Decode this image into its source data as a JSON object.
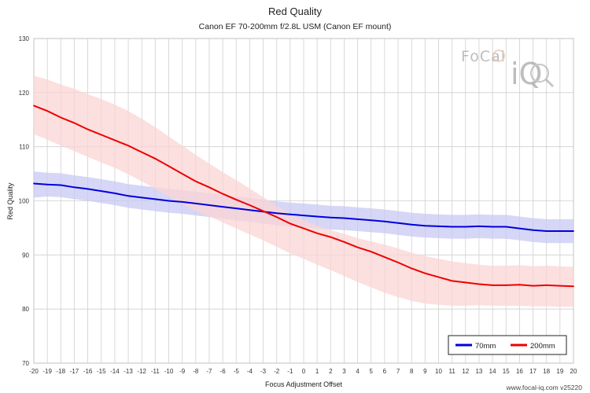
{
  "chart_data": {
    "type": "line",
    "title": "Red Quality",
    "subtitle": "Canon EF 70-200mm f/2.8L USM (Canon EF mount)",
    "xlabel": "Focus Adjustment Offset",
    "ylabel": "Red Quality",
    "xlim": [
      -20,
      20
    ],
    "ylim": [
      70,
      130
    ],
    "x_ticks": [
      -20,
      -19,
      -18,
      -17,
      -16,
      -15,
      -14,
      -13,
      -12,
      -11,
      -10,
      -9,
      -8,
      -7,
      -6,
      -5,
      -4,
      -3,
      -2,
      -1,
      0,
      1,
      2,
      3,
      4,
      5,
      6,
      7,
      8,
      9,
      10,
      11,
      12,
      13,
      14,
      15,
      16,
      17,
      18,
      19,
      20
    ],
    "y_ticks": [
      70,
      80,
      90,
      100,
      110,
      120,
      130
    ],
    "grid": true,
    "legend_position": "bottom-right",
    "x": [
      -20,
      -19,
      -18,
      -17,
      -16,
      -15,
      -14,
      -13,
      -12,
      -11,
      -10,
      -9,
      -8,
      -7,
      -6,
      -5,
      -4,
      -3,
      -2,
      -1,
      0,
      1,
      2,
      3,
      4,
      5,
      6,
      7,
      8,
      9,
      10,
      11,
      12,
      13,
      14,
      15,
      16,
      17,
      18,
      19,
      20
    ],
    "series": [
      {
        "name": "70mm",
        "color": "#0000dd",
        "band_color": "#c8c8f4",
        "values": [
          103.2,
          103.0,
          102.9,
          102.5,
          102.2,
          101.8,
          101.4,
          100.9,
          100.6,
          100.3,
          100.0,
          99.8,
          99.5,
          99.2,
          98.9,
          98.6,
          98.3,
          98.0,
          97.7,
          97.5,
          97.3,
          97.1,
          96.9,
          96.8,
          96.6,
          96.4,
          96.2,
          95.9,
          95.6,
          95.4,
          95.3,
          95.2,
          95.2,
          95.3,
          95.2,
          95.2,
          94.9,
          94.6,
          94.4,
          94.4,
          94.4
        ],
        "band_upper": [
          105.4,
          105.2,
          105.1,
          104.7,
          104.4,
          104.0,
          103.6,
          103.1,
          102.8,
          102.5,
          102.2,
          102.0,
          101.7,
          101.4,
          101.1,
          100.8,
          100.5,
          100.2,
          99.9,
          99.7,
          99.5,
          99.3,
          99.1,
          99.0,
          98.8,
          98.6,
          98.4,
          98.1,
          97.8,
          97.6,
          97.5,
          97.4,
          97.4,
          97.5,
          97.4,
          97.4,
          97.1,
          96.8,
          96.6,
          96.6,
          96.6
        ],
        "band_lower": [
          100.6,
          100.8,
          100.7,
          100.3,
          100.0,
          99.6,
          99.2,
          98.7,
          98.4,
          98.1,
          97.8,
          97.6,
          97.3,
          97.0,
          96.7,
          96.4,
          96.1,
          95.8,
          95.5,
          95.3,
          95.1,
          94.9,
          94.7,
          94.6,
          94.4,
          94.2,
          94.0,
          93.7,
          93.4,
          93.2,
          93.1,
          93.0,
          93.0,
          93.1,
          93.0,
          93.0,
          92.7,
          92.4,
          92.2,
          92.2,
          92.2
        ]
      },
      {
        "name": "200mm",
        "color": "#ee0000",
        "band_color": "#fbd4d4",
        "values": [
          117.6,
          116.6,
          115.4,
          114.4,
          113.2,
          112.2,
          111.2,
          110.2,
          109.0,
          107.8,
          106.4,
          105.0,
          103.6,
          102.5,
          101.3,
          100.2,
          99.2,
          98.1,
          97.0,
          95.8,
          94.9,
          94.0,
          93.3,
          92.4,
          91.4,
          90.6,
          89.6,
          88.6,
          87.5,
          86.6,
          85.9,
          85.2,
          84.9,
          84.6,
          84.4,
          84.4,
          84.5,
          84.3,
          84.4,
          84.3,
          84.2
        ],
        "band_upper": [
          123.1,
          122.4,
          121.5,
          120.7,
          119.7,
          118.8,
          117.8,
          116.6,
          115.2,
          113.6,
          111.9,
          110.2,
          108.5,
          106.9,
          105.3,
          103.8,
          102.3,
          100.7,
          99.1,
          97.6,
          96.5,
          95.4,
          94.6,
          93.9,
          93.1,
          92.5,
          91.9,
          91.2,
          90.4,
          89.8,
          89.3,
          88.8,
          88.5,
          88.2,
          88.0,
          88.0,
          88.1,
          87.9,
          88.0,
          87.9,
          87.8
        ],
        "band_lower": [
          112.3,
          111.3,
          110.2,
          109.2,
          108.1,
          107.1,
          106.1,
          104.9,
          103.6,
          102.2,
          100.8,
          99.4,
          98.1,
          97.1,
          96.0,
          94.9,
          93.8,
          92.7,
          91.5,
          90.3,
          89.3,
          88.2,
          87.2,
          86.1,
          85.0,
          84.0,
          83.0,
          82.2,
          81.5,
          81.0,
          80.8,
          80.6,
          80.6,
          80.7,
          80.6,
          80.6,
          80.6,
          80.5,
          80.5,
          80.4,
          80.4
        ]
      }
    ]
  },
  "logo": {
    "text_top": "FoCal",
    "text_bottom": "iQ"
  },
  "footer": {
    "text": "www.focal-iq.com  v25220"
  }
}
